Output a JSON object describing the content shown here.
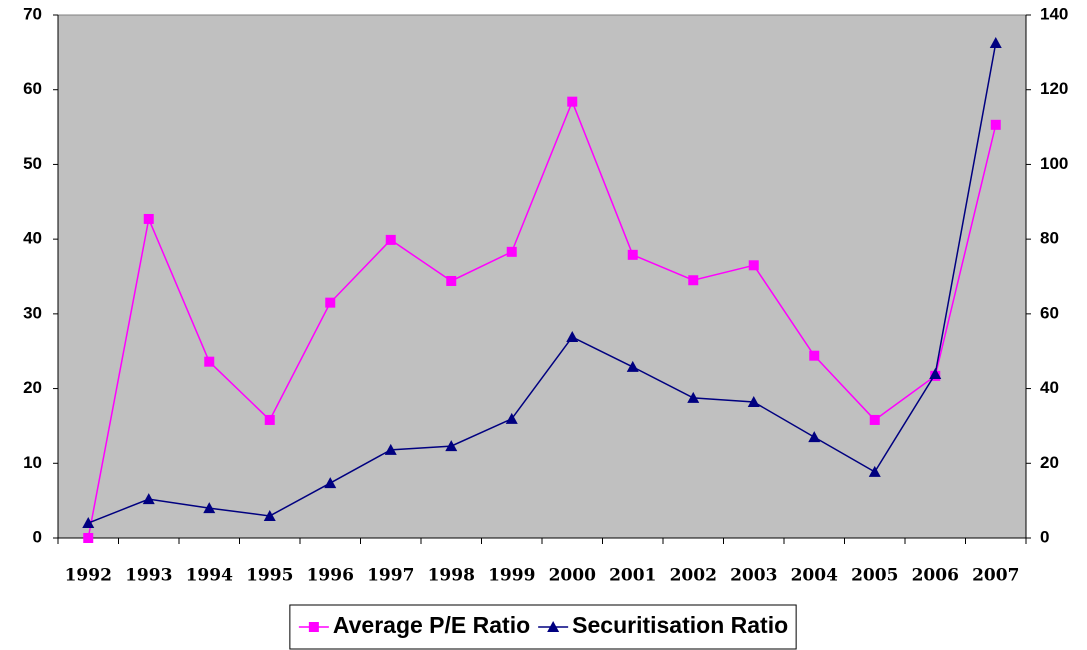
{
  "chart_data": {
    "type": "line",
    "categories": [
      "1992",
      "1993",
      "1994",
      "1995",
      "1996",
      "1997",
      "1998",
      "1999",
      "2000",
      "2001",
      "2002",
      "2003",
      "2004",
      "2005",
      "2006",
      "2007"
    ],
    "series": [
      {
        "name": "Average P/E Ratio",
        "color": "#ff00ff",
        "marker": "square",
        "values": [
          0,
          42.7,
          23.6,
          15.8,
          31.5,
          39.9,
          34.4,
          38.3,
          58.4,
          37.9,
          34.5,
          36.5,
          24.4,
          15.8,
          21.7,
          55.3
        ]
      },
      {
        "name": "Securitisation Ratio",
        "color": "#000080",
        "marker": "triangle",
        "axis": "y2",
        "values": [
          4,
          10.4,
          8,
          5.9,
          14.7,
          23.6,
          24.6,
          31.9,
          53.8,
          45.8,
          37.5,
          36.4,
          27,
          17.7,
          43.9,
          132.5
        ]
      }
    ],
    "ylim": [
      0,
      70
    ],
    "yticks": [
      0,
      10,
      20,
      30,
      40,
      50,
      60,
      70
    ],
    "y2lim": [
      0,
      140
    ],
    "y2ticks": [
      0,
      20,
      40,
      60,
      80,
      100,
      120,
      140
    ],
    "plot_background": "#c0c0c0"
  }
}
